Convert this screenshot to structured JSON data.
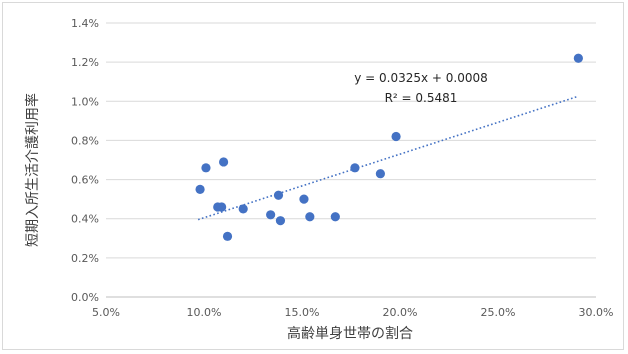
{
  "chart_data": {
    "type": "scatter",
    "xlabel": "高齢単身世帯の割合",
    "ylabel": "短期入所生活介護利用率",
    "xlim": [
      0.05,
      0.3
    ],
    "ylim": [
      0.0,
      0.014
    ],
    "x_ticks": [
      0.05,
      0.1,
      0.15,
      0.2,
      0.25,
      0.3
    ],
    "x_tick_labels": [
      "5.0%",
      "10.0%",
      "15.0%",
      "20.0%",
      "25.0%",
      "30.0%"
    ],
    "y_ticks": [
      0.0,
      0.002,
      0.004,
      0.006,
      0.008,
      0.01,
      0.012,
      0.014
    ],
    "y_tick_labels": [
      "0.0%",
      "0.2%",
      "0.4%",
      "0.6%",
      "0.8%",
      "1.0%",
      "1.2%",
      "1.4%"
    ],
    "grid": "horizontal",
    "points": [
      {
        "x": 0.098,
        "y": 0.0055
      },
      {
        "x": 0.101,
        "y": 0.0066
      },
      {
        "x": 0.107,
        "y": 0.0046
      },
      {
        "x": 0.109,
        "y": 0.0046
      },
      {
        "x": 0.11,
        "y": 0.0069
      },
      {
        "x": 0.112,
        "y": 0.0031
      },
      {
        "x": 0.12,
        "y": 0.0045
      },
      {
        "x": 0.134,
        "y": 0.0042
      },
      {
        "x": 0.138,
        "y": 0.0052
      },
      {
        "x": 0.139,
        "y": 0.0039
      },
      {
        "x": 0.151,
        "y": 0.005
      },
      {
        "x": 0.154,
        "y": 0.0041
      },
      {
        "x": 0.167,
        "y": 0.0041
      },
      {
        "x": 0.177,
        "y": 0.0066
      },
      {
        "x": 0.19,
        "y": 0.0063
      },
      {
        "x": 0.198,
        "y": 0.0082
      },
      {
        "x": 0.291,
        "y": 0.0122
      }
    ],
    "trendline": {
      "slope": 0.0325,
      "intercept": 0.0008,
      "x_range": [
        0.097,
        0.291
      ],
      "equation": "y = 0.0325x + 0.0008",
      "r_squared": "R² = 0.5481"
    },
    "colors": {
      "marker": "#4472c4",
      "trendline": "#4472c4",
      "grid": "#d9d9d9",
      "axis": "#bfbfbf"
    }
  }
}
